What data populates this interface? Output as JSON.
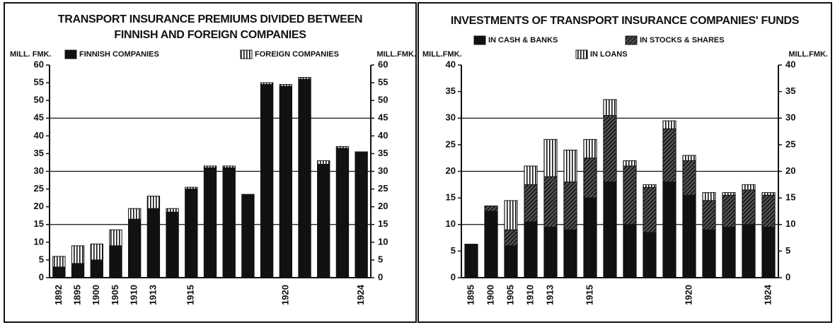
{
  "chart_data": [
    {
      "type": "stacked_bar",
      "title": [
        "TRANSPORT INSURANCE PREMIUMS DIVIDED BETWEEN",
        "FINNISH AND FOREIGN COMPANIES"
      ],
      "ylabel": "MILL. FMK.",
      "ylabel_right": "MILL.FMK.",
      "categories": [
        "1892",
        "1895",
        "1900",
        "1905",
        "1910",
        "1913",
        null,
        "1915",
        null,
        null,
        null,
        null,
        "1920",
        null,
        null,
        null,
        "1924"
      ],
      "series": [
        {
          "name": "FINNISH COMPANIES",
          "color": "#111111",
          "pattern": "solid",
          "values": [
            3,
            4,
            5,
            9,
            16.5,
            19.5,
            18.5,
            25,
            31,
            31,
            23.5,
            54.5,
            54,
            56,
            32,
            36.5,
            35.5
          ]
        },
        {
          "name": "FOREIGN COMPANIES",
          "color": "#111111",
          "pattern": "vertical",
          "values": [
            3,
            5,
            4.5,
            4.5,
            3,
            3.5,
            1,
            0.5,
            0.5,
            0.5,
            0,
            0.5,
            0.5,
            0.5,
            1,
            0.5,
            0
          ]
        }
      ],
      "ylim": [
        0,
        60
      ],
      "yticks": [
        0,
        5,
        10,
        15,
        20,
        25,
        30,
        35,
        40,
        45,
        50,
        55,
        60
      ],
      "grid_lines": [
        15,
        30,
        45
      ]
    },
    {
      "type": "stacked_bar",
      "title": [
        "INVESTMENTS OF TRANSPORT INSURANCE COMPANIES' FUNDS"
      ],
      "ylabel": "MILL.FMK.",
      "ylabel_right": "MILL.FMK.",
      "categories": [
        "1895",
        "1900",
        "1905",
        "1910",
        "1913",
        null,
        "1915",
        null,
        null,
        null,
        null,
        "1920",
        null,
        null,
        null,
        "1924"
      ],
      "series": [
        {
          "name": "IN CASH & BANKS",
          "color": "#111111",
          "pattern": "solid",
          "values": [
            6.3,
            12.5,
            6,
            10.5,
            9.5,
            9,
            15,
            18,
            10,
            8.5,
            18,
            15.5,
            9,
            9.5,
            10,
            9.5
          ]
        },
        {
          "name": "IN STOCKS & SHARES",
          "color": "#111111",
          "pattern": "diagonal",
          "values": [
            0,
            1,
            3,
            7,
            9.5,
            9,
            7.5,
            12.5,
            11,
            8.5,
            10,
            6.5,
            5.5,
            6,
            6.5,
            6
          ]
        },
        {
          "name": "IN LOANS",
          "color": "#111111",
          "pattern": "vertical",
          "values": [
            0,
            0,
            5.5,
            3.5,
            7,
            6,
            3.5,
            3,
            1,
            0.5,
            1.5,
            1,
            1.5,
            0.5,
            1,
            0.5
          ]
        }
      ],
      "ylim": [
        0,
        40
      ],
      "yticks": [
        0,
        5,
        10,
        15,
        20,
        25,
        30,
        35,
        40
      ],
      "grid_lines": [
        10,
        20,
        30
      ]
    }
  ]
}
